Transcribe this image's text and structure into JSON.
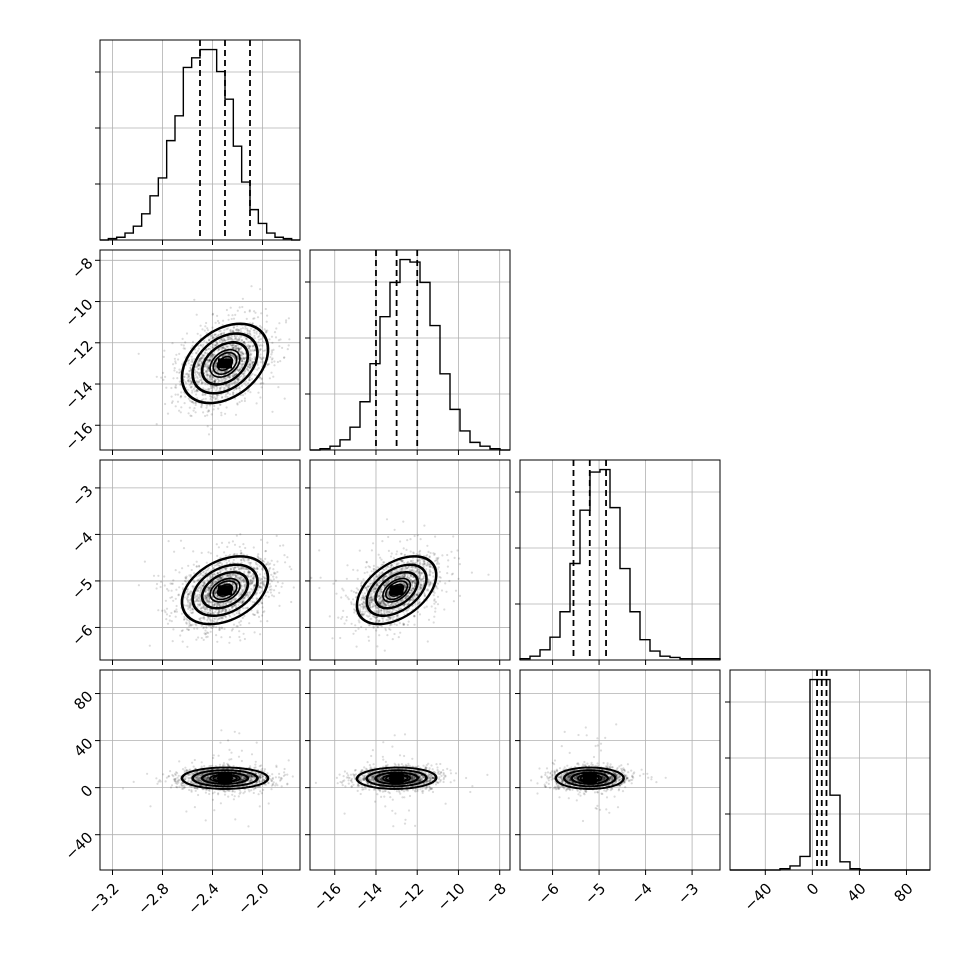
{
  "chart_data": {
    "type": "corner",
    "title": "",
    "grid": true,
    "n_params": 4,
    "params": [
      {
        "ticks": [
          -3.2,
          -2.8,
          -2.4,
          -2.0
        ],
        "tick_labels": [
          "−3.2",
          "−2.8",
          "−2.4",
          "−2.0"
        ],
        "range": [
          -3.3,
          -1.7
        ],
        "mean": -2.3,
        "sd": 0.17,
        "quantiles": [
          -2.5,
          -2.3,
          -2.1
        ]
      },
      {
        "ticks": [
          -16,
          -14,
          -12,
          -10,
          -8
        ],
        "tick_labels": [
          "−16",
          "−14",
          "−12",
          "−10",
          "−8"
        ],
        "range": [
          -17.2,
          -7.5
        ],
        "mean": -13.0,
        "sd": 0.95,
        "quantiles": [
          -14.0,
          -13.0,
          -12.0
        ]
      },
      {
        "ticks": [
          -6,
          -5,
          -4,
          -3
        ],
        "tick_labels": [
          "−6",
          "−5",
          "−4",
          "−3"
        ],
        "range": [
          -6.7,
          -2.4
        ],
        "mean": -5.2,
        "sd": 0.36,
        "quantiles": [
          -5.55,
          -5.2,
          -4.85
        ]
      },
      {
        "ticks": [
          -40,
          0,
          40,
          80
        ],
        "tick_labels": [
          "−40",
          "0",
          "40",
          "80"
        ],
        "range": [
          -70,
          100
        ],
        "mean": 8.0,
        "sd": 4.5,
        "quantiles": [
          4.0,
          8.0,
          12.0
        ]
      }
    ],
    "row_tick_labels": {
      "1": [
        "−8",
        "−10",
        "−12",
        "−14",
        "−16"
      ],
      "2": [
        "−3",
        "−4",
        "−5",
        "−6"
      ],
      "3": [
        "80",
        "40",
        "0",
        "−40"
      ]
    },
    "correlations": [
      [
        1,
        0.35,
        0.35,
        0.0
      ],
      [
        0.35,
        1,
        0.45,
        0.05
      ],
      [
        0.35,
        0.45,
        1,
        0.0
      ],
      [
        0.0,
        0.05,
        0.0,
        1
      ]
    ],
    "histograms": [
      [
        0,
        1,
        2,
        5,
        10,
        19,
        32,
        45,
        72,
        90,
        125,
        132,
        138,
        138,
        122,
        102,
        68,
        42,
        22,
        12,
        5,
        2,
        1,
        0
      ],
      [
        0,
        1,
        3,
        8,
        18,
        38,
        68,
        105,
        132,
        150,
        148,
        132,
        98,
        60,
        32,
        15,
        6,
        3,
        1,
        0
      ],
      [
        1,
        3,
        8,
        18,
        38,
        76,
        118,
        148,
        150,
        120,
        72,
        38,
        16,
        7,
        3,
        2,
        1,
        1,
        1,
        1
      ],
      [
        0,
        0,
        0,
        0,
        0,
        1,
        3,
        10,
        140,
        140,
        55,
        6,
        1,
        0,
        0,
        0,
        0,
        0,
        0,
        0
      ]
    ]
  }
}
